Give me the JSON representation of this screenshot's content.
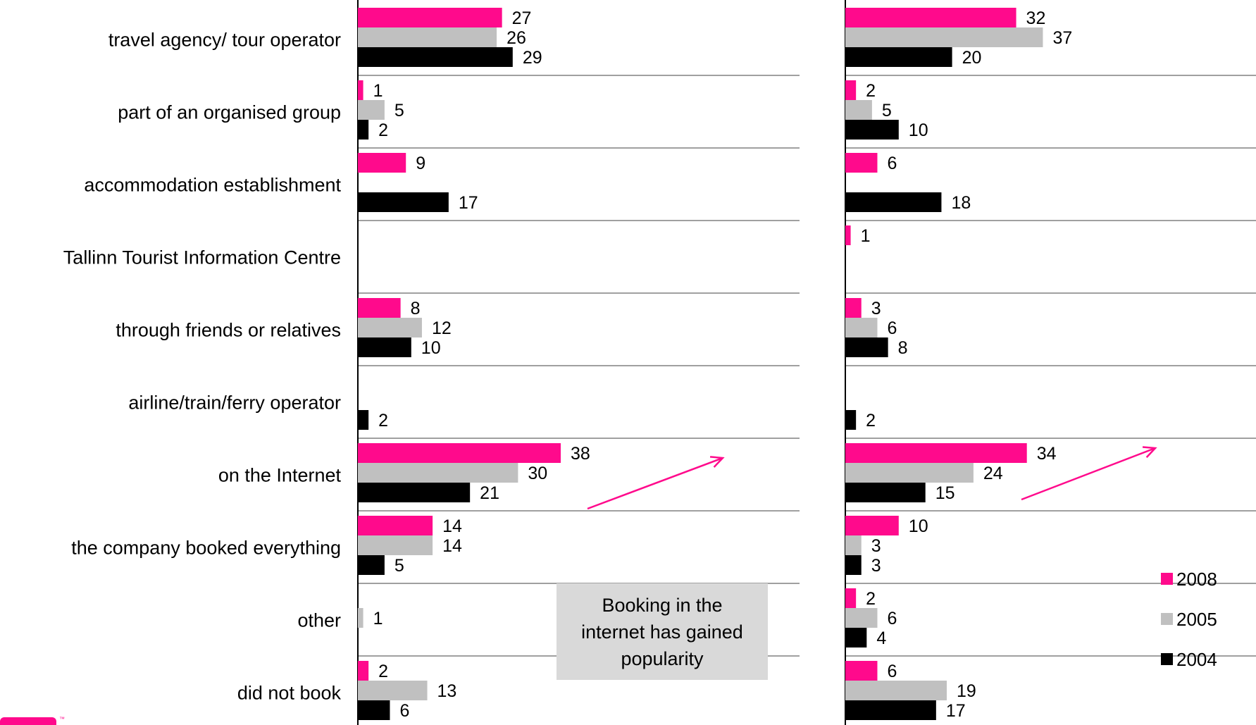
{
  "chart_data": [
    {
      "type": "bar",
      "orientation": "horizontal",
      "categories": [
        "travel agency/ tour operator",
        "part of an organised group",
        "accommodation establishment",
        "Tallinn Tourist Information Centre",
        "through friends or relatives",
        "airline/train/ferry operator",
        "on the Internet",
        "the company booked everything",
        "other",
        "did not book"
      ],
      "series": [
        {
          "name": "2008",
          "values": [
            27,
            1,
            9,
            null,
            8,
            null,
            38,
            14,
            null,
            2
          ]
        },
        {
          "name": "2005",
          "values": [
            26,
            5,
            null,
            null,
            12,
            null,
            30,
            14,
            1,
            13
          ]
        },
        {
          "name": "2004",
          "values": [
            29,
            2,
            17,
            null,
            10,
            2,
            21,
            5,
            null,
            6
          ]
        }
      ]
    },
    {
      "type": "bar",
      "orientation": "horizontal",
      "categories": [
        "travel agency/ tour operator",
        "part of an organised group",
        "accommodation establishment",
        "Tallinn Tourist Information Centre",
        "through friends or relatives",
        "airline/train/ferry operator",
        "on the Internet",
        "the company booked everything",
        "other",
        "did not book"
      ],
      "series": [
        {
          "name": "2008",
          "values": [
            32,
            2,
            6,
            1,
            3,
            null,
            34,
            10,
            2,
            6
          ]
        },
        {
          "name": "2005",
          "values": [
            37,
            5,
            null,
            null,
            6,
            null,
            24,
            3,
            6,
            19
          ]
        },
        {
          "name": "2004",
          "values": [
            20,
            10,
            18,
            null,
            8,
            2,
            15,
            3,
            4,
            17
          ]
        }
      ]
    }
  ],
  "colors": {
    "2008": "#ff0a8c",
    "2005": "#c0c0c0",
    "2004": "#000000",
    "arrow": "#ff0a8c"
  },
  "legend": {
    "items": [
      "2008",
      "2005",
      "2004"
    ],
    "placement": "bottom-right"
  },
  "annotation": {
    "text": "Booking in the internet has gained popularity"
  }
}
